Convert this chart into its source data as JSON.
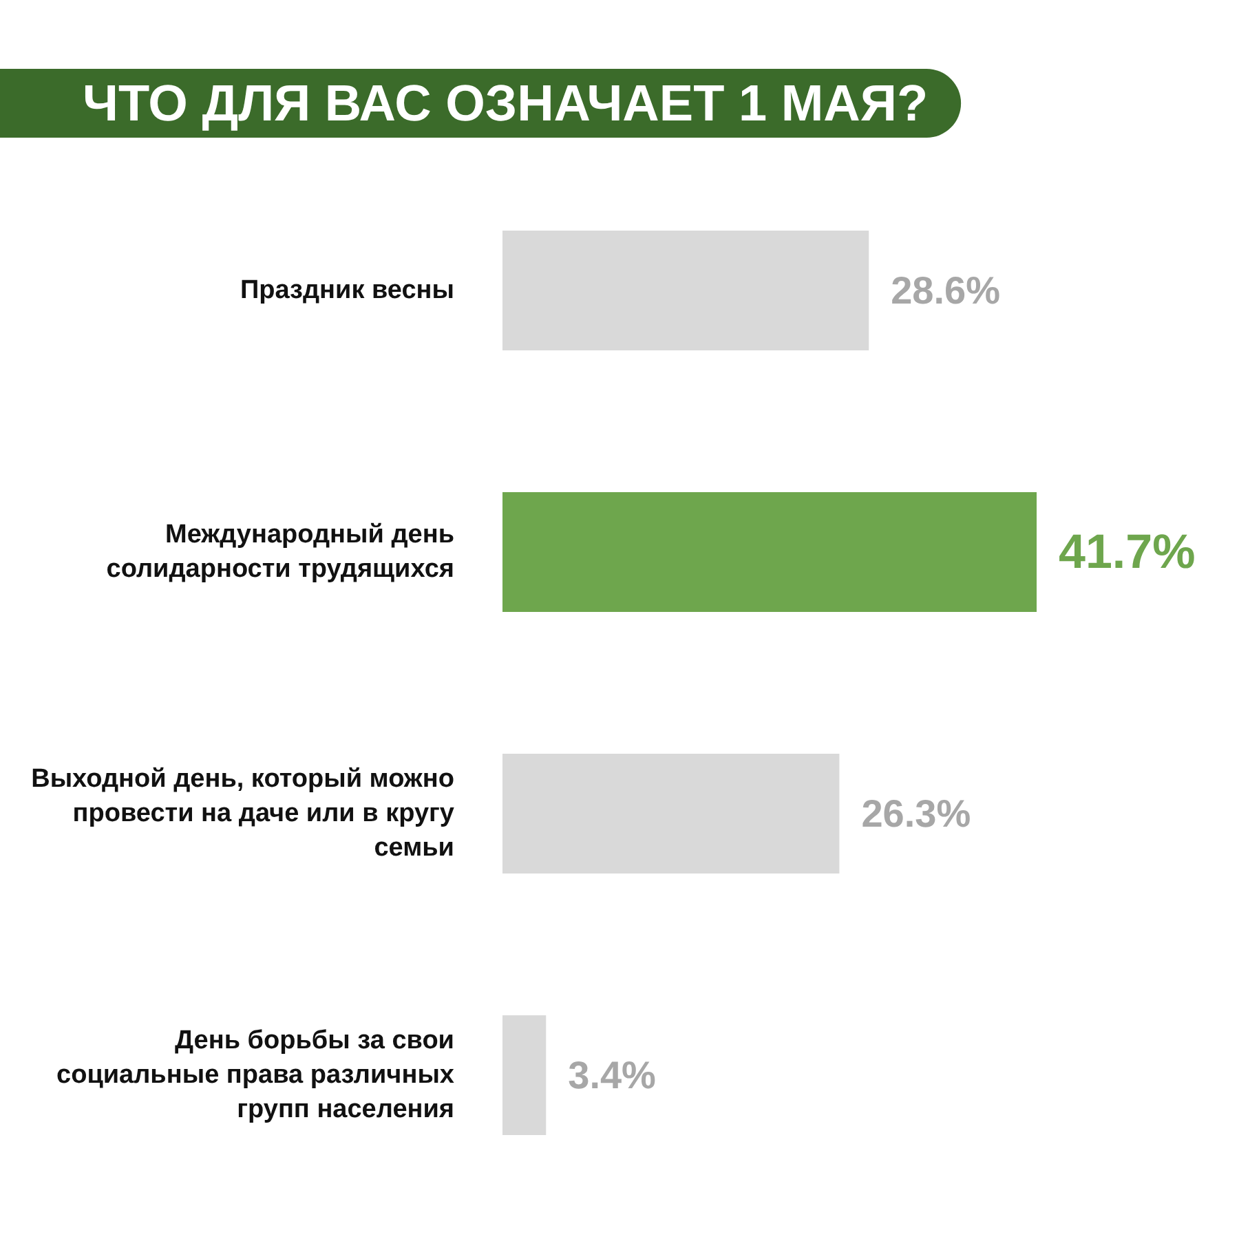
{
  "chart_data": {
    "type": "bar",
    "orientation": "horizontal",
    "title": "ЧТО ДЛЯ ВАС ОЗНАЧАЕТ 1 МАЯ?",
    "categories": [
      "Праздник весны",
      "Международный день солидарности трудящихся",
      "Выходной день, который можно провести на даче или в кругу семьи",
      "День борьбы за свои социальные права различных групп населения"
    ],
    "values": [
      28.6,
      41.7,
      26.3,
      3.4
    ],
    "value_labels": [
      "28.6%",
      "41.7%",
      "26.3%",
      "3.4%"
    ],
    "colors": [
      "#d9d9d9",
      "#6ea64d",
      "#d9d9d9",
      "#d9d9d9"
    ],
    "tick_labels": "y",
    "grid": false
  }
}
